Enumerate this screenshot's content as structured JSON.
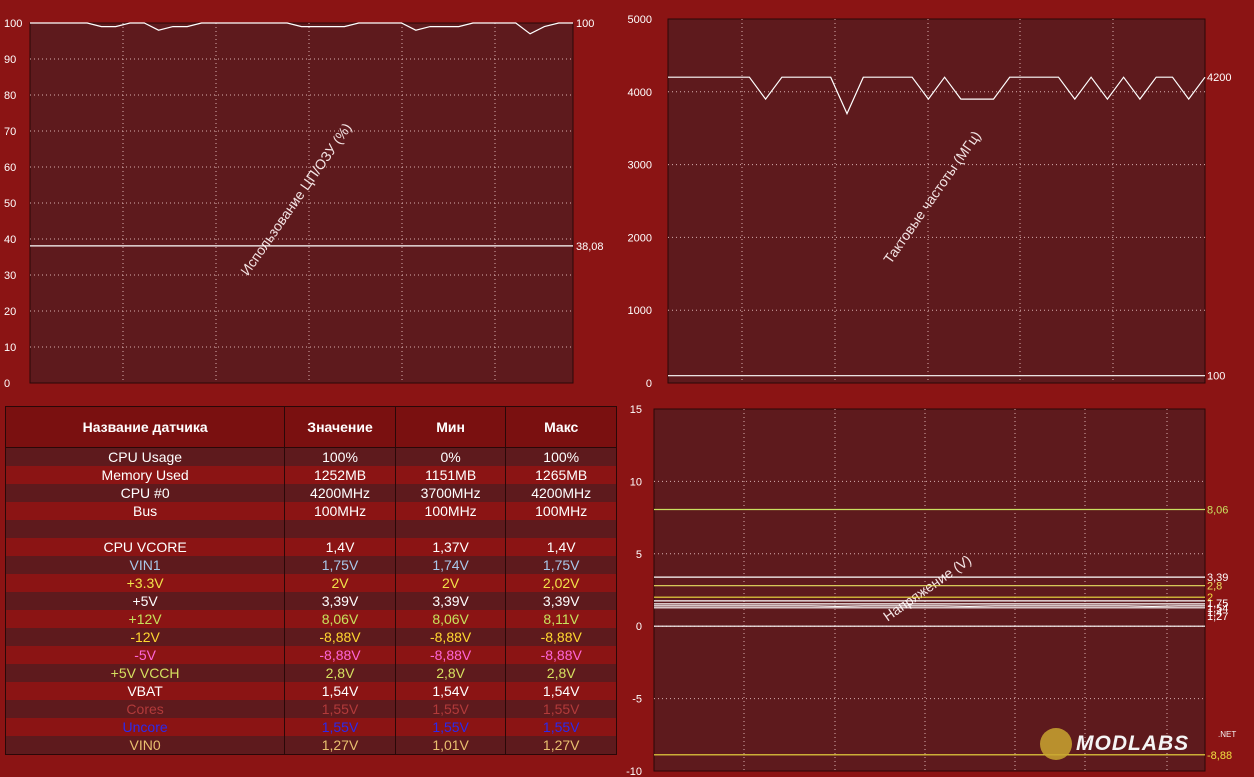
{
  "chart_data": [
    {
      "type": "line",
      "title": "",
      "ylabel": "Использование ЦП/ОЗУ (%)",
      "ylim": [
        0,
        100
      ],
      "yticks": [
        "0",
        "10",
        "20",
        "30",
        "40",
        "50",
        "60",
        "70",
        "80",
        "90",
        "100"
      ],
      "grid": true,
      "series": [
        {
          "color": "#ffffff",
          "end_label": "100",
          "values": [
            100,
            100,
            100,
            100,
            100,
            99,
            99,
            100,
            100,
            98,
            99,
            99,
            100,
            100,
            100,
            100,
            100,
            100,
            100,
            99,
            99,
            99,
            99,
            100,
            100,
            100,
            100,
            98,
            99,
            99,
            99,
            100,
            100,
            100,
            100,
            97,
            99,
            100,
            100
          ]
        },
        {
          "color": "#ffffff",
          "end_label": "38,08",
          "values": [
            38.08,
            38.08,
            38.08,
            38.08,
            38.08,
            38.08,
            38.08,
            38.08,
            38.08,
            38.08
          ]
        }
      ]
    },
    {
      "type": "line",
      "title": "",
      "ylabel": "Тактовые частоты (МГц)",
      "ylim": [
        0,
        5000
      ],
      "yticks": [
        "0",
        "1000",
        "2000",
        "3000",
        "4000",
        "5000"
      ],
      "grid": true,
      "series": [
        {
          "color": "#ffffff",
          "end_label": "4200",
          "values": [
            4200,
            4200,
            4200,
            4200,
            4200,
            4200,
            3900,
            4200,
            4200,
            4200,
            4200,
            3700,
            4200,
            4200,
            4200,
            4200,
            3900,
            4200,
            3900,
            3900,
            3900,
            4200,
            4200,
            4200,
            4200,
            3900,
            4200,
            3900,
            4200,
            3900,
            4200,
            4200,
            3900,
            4200
          ]
        },
        {
          "color": "#ffffff",
          "end_label": "100",
          "values": [
            100,
            100,
            100,
            100,
            100,
            100
          ]
        }
      ]
    },
    {
      "type": "line",
      "title": "",
      "ylabel": "Напряжение (V)",
      "ylim": [
        -10,
        15
      ],
      "yticks": [
        "-10",
        "-5",
        "0",
        "5",
        "10",
        "15"
      ],
      "grid": true,
      "series": [
        {
          "color": "#c8e060",
          "end_label": "8,06",
          "values": [
            8.06,
            8.06,
            8.06
          ]
        },
        {
          "color": "#ffffff",
          "end_label": "3,39",
          "values": [
            3.39,
            3.39,
            3.39
          ]
        },
        {
          "color": "#e8e060",
          "end_label": "2,8",
          "values": [
            2.8,
            2.8,
            2.8
          ]
        },
        {
          "color": "#f0e040",
          "end_label": "2",
          "values": [
            2,
            2,
            2
          ]
        },
        {
          "color": "#ffffff",
          "end_label": "1,75",
          "values": [
            1.75,
            1.75,
            1.75
          ]
        },
        {
          "color": "#ffffff",
          "end_label": "1,54",
          "values": [
            1.54,
            1.54,
            1.54
          ]
        },
        {
          "color": "#ffffff",
          "end_label": "1,4",
          "values": [
            1.4,
            1.4,
            1.4,
            1.4,
            1.4,
            1.4,
            1.4,
            1.37,
            1.4,
            1.4,
            1.4,
            1.4,
            1.37,
            1.4,
            1.4,
            1.4,
            1.4,
            1.4,
            1.4,
            1.37,
            1.4,
            1.4
          ]
        },
        {
          "color": "#ffffff",
          "end_label": "1,27",
          "values": [
            1.27,
            1.27,
            1.27
          ]
        },
        {
          "color": "#ffffff",
          "end_label": "",
          "values": [
            0,
            0,
            0
          ]
        },
        {
          "color": "#f0e040",
          "end_label": "-8,88",
          "values": [
            -8.88,
            -8.88,
            -8.88
          ]
        }
      ]
    },
    {
      "type": "table",
      "columns": [
        "Название датчика",
        "Значение",
        "Мин",
        "Макс"
      ],
      "rows": [
        {
          "name": "CPU Usage",
          "value": "100%",
          "min": "0%",
          "max": "100%",
          "color": "#ffffff"
        },
        {
          "name": "Memory Used",
          "value": "1252MB",
          "min": "1151MB",
          "max": "1265MB",
          "color": "#ffffff"
        },
        {
          "name": "CPU #0",
          "value": "4200MHz",
          "min": "3700MHz",
          "max": "4200MHz",
          "color": "#ffffff"
        },
        {
          "name": "Bus",
          "value": "100MHz",
          "min": "100MHz",
          "max": "100MHz",
          "color": "#ffffff"
        },
        {
          "name": "",
          "value": "",
          "min": "",
          "max": "",
          "color": "#ffffff"
        },
        {
          "name": "CPU VCORE",
          "value": "1,4V",
          "min": "1,37V",
          "max": "1,4V",
          "color": "#ffffff"
        },
        {
          "name": "VIN1",
          "value": "1,75V",
          "min": "1,74V",
          "max": "1,75V",
          "color": "#a9c8ea"
        },
        {
          "name": "+3.3V",
          "value": "2V",
          "min": "2V",
          "max": "2,02V",
          "color": "#f2e34a"
        },
        {
          "name": "+5V",
          "value": "3,39V",
          "min": "3,39V",
          "max": "3,39V",
          "color": "#ffffff"
        },
        {
          "name": "+12V",
          "value": "8,06V",
          "min": "8,06V",
          "max": "8,11V",
          "color": "#c7e25c"
        },
        {
          "name": "-12V",
          "value": "-8,88V",
          "min": "-8,88V",
          "max": "-8,88V",
          "color": "#ffd830"
        },
        {
          "name": "-5V",
          "value": "-8,88V",
          "min": "-8,88V",
          "max": "-8,88V",
          "color": "#ff66d8"
        },
        {
          "name": "+5V VCCH",
          "value": "2,8V",
          "min": "2,8V",
          "max": "2,8V",
          "color": "#d6e060"
        },
        {
          "name": "VBAT",
          "value": "1,54V",
          "min": "1,54V",
          "max": "1,54V",
          "color": "#ffffff"
        },
        {
          "name": "Cores",
          "value": "1,55V",
          "min": "1,55V",
          "max": "1,55V",
          "color": "#b23a3a"
        },
        {
          "name": "Uncore",
          "value": "1,55V",
          "min": "1,55V",
          "max": "1,55V",
          "color": "#2a2aee"
        },
        {
          "name": "VIN0",
          "value": "1,27V",
          "min": "1,01V",
          "max": "1,27V",
          "color": "#e9c070"
        }
      ]
    }
  ],
  "watermark": {
    "text": "MODLABS",
    "suffix": ".NET"
  }
}
